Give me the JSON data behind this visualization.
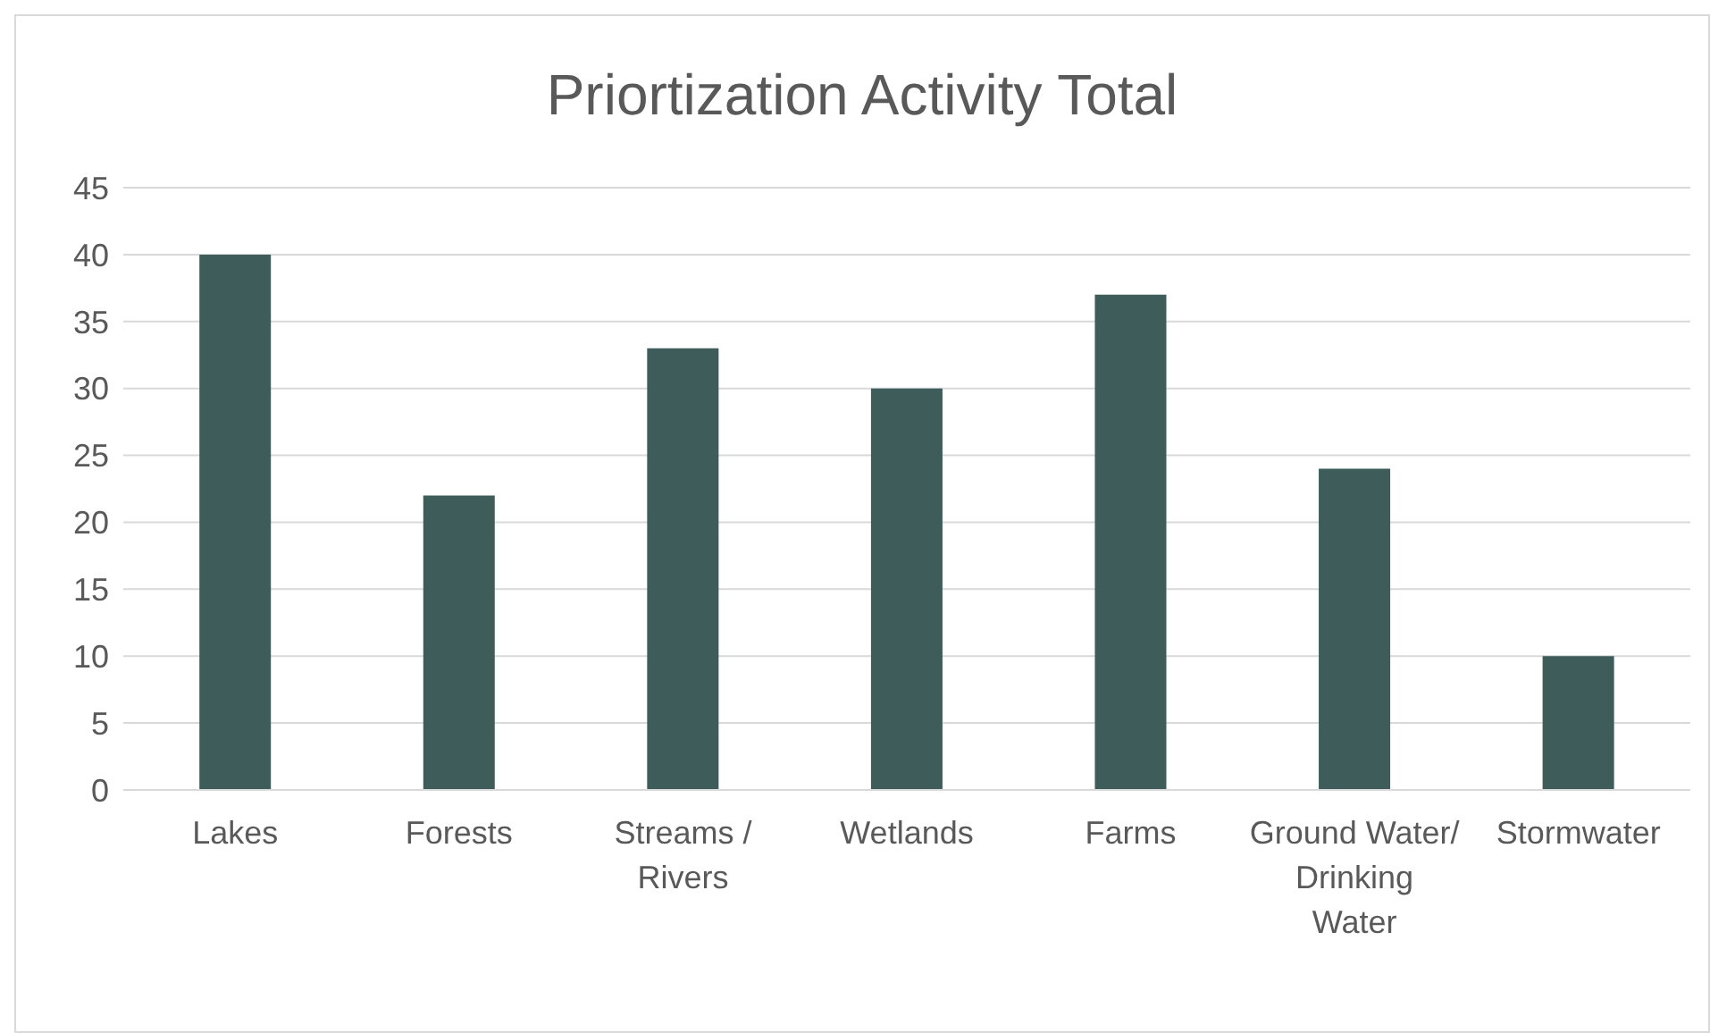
{
  "chart_data": {
    "type": "bar",
    "title": "Priortization Activity Total",
    "categories": [
      "Lakes",
      "Forests",
      "Streams / Rivers",
      "Wetlands",
      "Farms",
      "Ground Water/ Drinking Water",
      "Stormwater"
    ],
    "values": [
      40,
      22,
      33,
      30,
      37,
      24,
      10
    ],
    "color": "#3d5c5a",
    "ylim": [
      0,
      45
    ],
    "yticks": [
      0,
      5,
      10,
      15,
      20,
      25,
      30,
      35,
      40,
      45
    ],
    "grid": "y",
    "legend": false
  }
}
